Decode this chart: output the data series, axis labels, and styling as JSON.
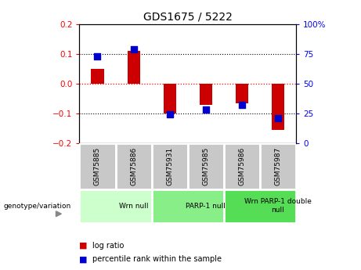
{
  "title": "GDS1675 / 5222",
  "samples": [
    "GSM75885",
    "GSM75886",
    "GSM75931",
    "GSM75985",
    "GSM75986",
    "GSM75987"
  ],
  "log_ratio": [
    0.05,
    0.11,
    -0.1,
    -0.07,
    -0.065,
    -0.155
  ],
  "percentile_rank": [
    73,
    79,
    24,
    28,
    32,
    21
  ],
  "ylim_left": [
    -0.2,
    0.2
  ],
  "ylim_right": [
    0,
    100
  ],
  "bar_color": "#cc0000",
  "dot_color": "#0000cc",
  "groups": [
    {
      "label": "Wrn null",
      "start": 0,
      "end": 2,
      "color": "#ccffcc"
    },
    {
      "label": "PARP-1 null",
      "start": 2,
      "end": 4,
      "color": "#88ee88"
    },
    {
      "label": "Wrn PARP-1 double\nnull",
      "start": 4,
      "end": 6,
      "color": "#55dd55"
    }
  ],
  "legend_items": [
    {
      "label": "log ratio",
      "color": "#cc0000"
    },
    {
      "label": "percentile rank within the sample",
      "color": "#0000cc"
    }
  ],
  "genotype_label": "genotype/variation",
  "background_color": "#ffffff",
  "bar_width": 0.35,
  "dot_size": 28
}
